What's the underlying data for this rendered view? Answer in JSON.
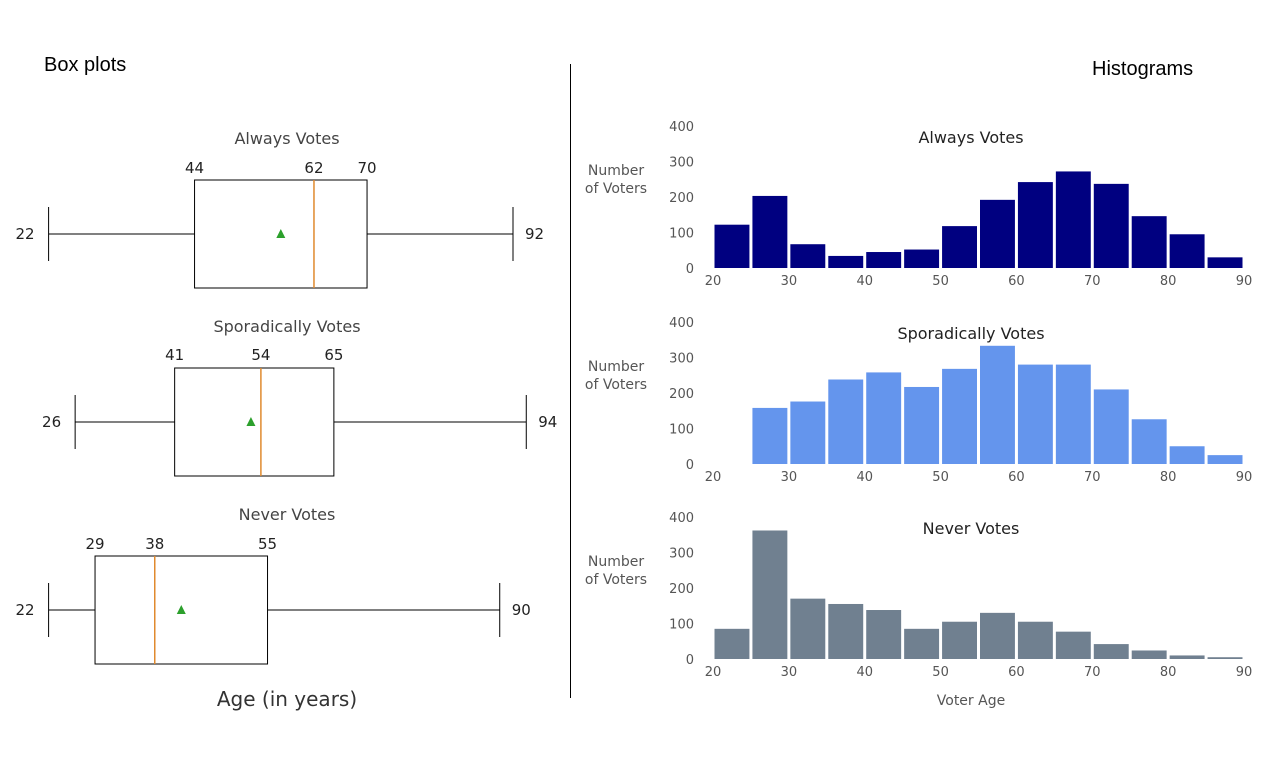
{
  "headings": {
    "box_plots": "Box plots",
    "histograms": "Histograms"
  },
  "colors": {
    "always": "#000080",
    "sporadic": "#6495ED",
    "never": "#708090",
    "median": "#E08A2E",
    "mean": "#2CA02C"
  },
  "chart_data": [
    {
      "type": "box",
      "xlabel": "Age (in years)",
      "series": [
        {
          "name": "Always Votes",
          "min": 22,
          "q1": 44,
          "median": 62,
          "q3": 70,
          "max": 92,
          "mean": 57
        },
        {
          "name": "Sporadically Votes",
          "min": 26,
          "q1": 41,
          "median": 54,
          "q3": 65,
          "max": 94,
          "mean": 52.5
        },
        {
          "name": "Never Votes",
          "min": 22,
          "q1": 29,
          "median": 38,
          "q3": 55,
          "max": 90,
          "mean": 42
        }
      ]
    },
    {
      "type": "bar",
      "bin_edges": [
        20,
        25,
        30,
        35,
        40,
        45,
        50,
        55,
        60,
        65,
        70,
        75,
        80,
        85,
        90
      ],
      "xticks": [
        20,
        30,
        40,
        50,
        60,
        70,
        80,
        90
      ],
      "yticks": [
        0,
        100,
        200,
        300,
        400
      ],
      "ylim": [
        0,
        400
      ],
      "ylabel": [
        "Number",
        "of Voters"
      ],
      "xlabel": "Voter Age",
      "series": [
        {
          "name": "Always Votes",
          "values": [
            122,
            203,
            67,
            34,
            45,
            52,
            118,
            192,
            242,
            272,
            237,
            146,
            95,
            30
          ]
        },
        {
          "name": "Sporadically Votes",
          "values": [
            0,
            158,
            176,
            238,
            258,
            217,
            268,
            333,
            280,
            280,
            210,
            126,
            50,
            25
          ]
        },
        {
          "name": "Never Votes",
          "values": [
            85,
            362,
            170,
            155,
            138,
            85,
            105,
            130,
            105,
            77,
            42,
            24,
            10,
            5
          ]
        }
      ]
    }
  ]
}
